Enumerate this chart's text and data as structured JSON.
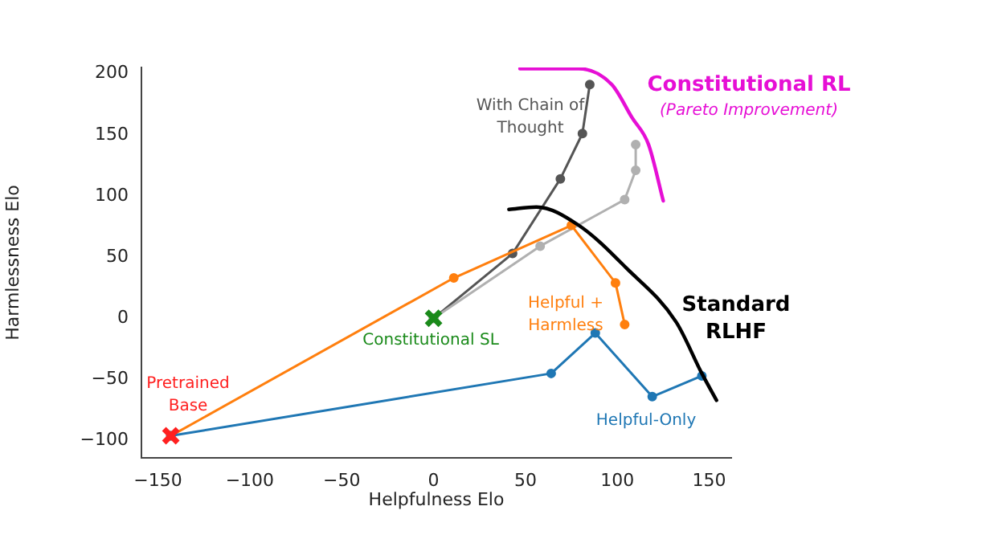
{
  "chart_data": {
    "type": "line",
    "xlabel": "Helpfulness Elo",
    "ylabel": "Harmlessness Elo",
    "xlim": [
      -159,
      162
    ],
    "ylim": [
      -114,
      205
    ],
    "xticks": [
      -150,
      -100,
      -50,
      0,
      50,
      100,
      150
    ],
    "yticks": [
      -100,
      -50,
      0,
      50,
      100,
      150,
      200
    ],
    "grid": false,
    "legend": false,
    "series": [
      {
        "name": "Standard RLHF",
        "color": "#000000",
        "marker": "none",
        "x": [
          41,
          56,
          79,
          105,
          132,
          146,
          154
        ],
        "values": [
          89,
          91,
          76,
          41,
          -3,
          -45,
          -67
        ]
      },
      {
        "name": "Constitutional RL",
        "color": "#e60fd5",
        "marker": "none",
        "x": [
          47,
          79,
          97,
          108,
          117,
          125
        ],
        "values": [
          204,
          204,
          191,
          164,
          142,
          96
        ]
      },
      {
        "name": "Helpful-Only",
        "color": "#1f77b4",
        "marker": "circle",
        "x": [
          -143,
          64,
          88,
          119,
          146
        ],
        "values": [
          -96,
          -45,
          -12,
          -64,
          -47
        ]
      },
      {
        "name": "Helpful + Harmless",
        "color": "#ff7f0e",
        "marker": "circle",
        "x": [
          -143,
          11,
          75,
          99,
          104
        ],
        "values": [
          -96,
          33,
          76,
          29,
          -5
        ]
      },
      {
        "color": "#b0b0b0",
        "marker": "circle",
        "x": [
          0,
          58,
          104,
          110,
          110
        ],
        "values": [
          0,
          59,
          97,
          121,
          142
        ]
      },
      {
        "name": "With Chain of Thought",
        "color": "#555555",
        "marker": "circle",
        "x": [
          0,
          43,
          69,
          81,
          85
        ],
        "values": [
          0,
          53,
          114,
          151,
          191
        ]
      },
      {
        "name": "Pretrained Base",
        "type": "scatter",
        "color": "#ff2020",
        "marker": "cross",
        "x": [
          -143
        ],
        "values": [
          -96
        ]
      },
      {
        "name": "Constitutional SL",
        "type": "scatter",
        "color": "#1a8a1a",
        "marker": "cross",
        "x": [
          0
        ],
        "values": [
          0
        ]
      }
    ],
    "annotations": [
      "(Pareto Improvement)"
    ]
  }
}
